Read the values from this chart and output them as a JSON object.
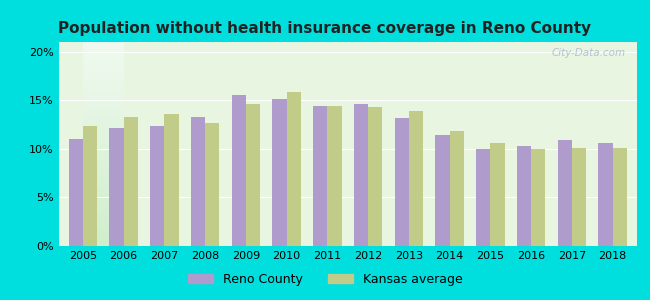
{
  "title": "Population without health insurance coverage in Reno County",
  "years": [
    2005,
    2006,
    2007,
    2008,
    2009,
    2010,
    2011,
    2012,
    2013,
    2014,
    2015,
    2016,
    2017,
    2018
  ],
  "reno_county": [
    11.0,
    12.1,
    12.4,
    13.3,
    15.5,
    15.1,
    14.4,
    14.6,
    13.2,
    11.4,
    10.0,
    10.3,
    10.9,
    10.6
  ],
  "kansas_avg": [
    12.4,
    13.3,
    13.6,
    12.7,
    14.6,
    15.9,
    14.4,
    14.3,
    13.9,
    11.8,
    10.6,
    10.0,
    10.1,
    10.1
  ],
  "reno_color": "#b09ccc",
  "kansas_color": "#c0cc88",
  "background_outer": "#00dede",
  "background_inner_top": "#e8f5e8",
  "background_inner_bottom": "#d8f0d8",
  "ylim": [
    0,
    21
  ],
  "yticks": [
    0,
    5,
    10,
    15,
    20
  ],
  "ytick_labels": [
    "0%",
    "5%",
    "10%",
    "15%",
    "20%"
  ],
  "legend_reno": "Reno County",
  "legend_kansas": "Kansas average",
  "bar_width": 0.35,
  "title_color": "#222222",
  "title_fontsize": 11,
  "tick_fontsize": 8
}
